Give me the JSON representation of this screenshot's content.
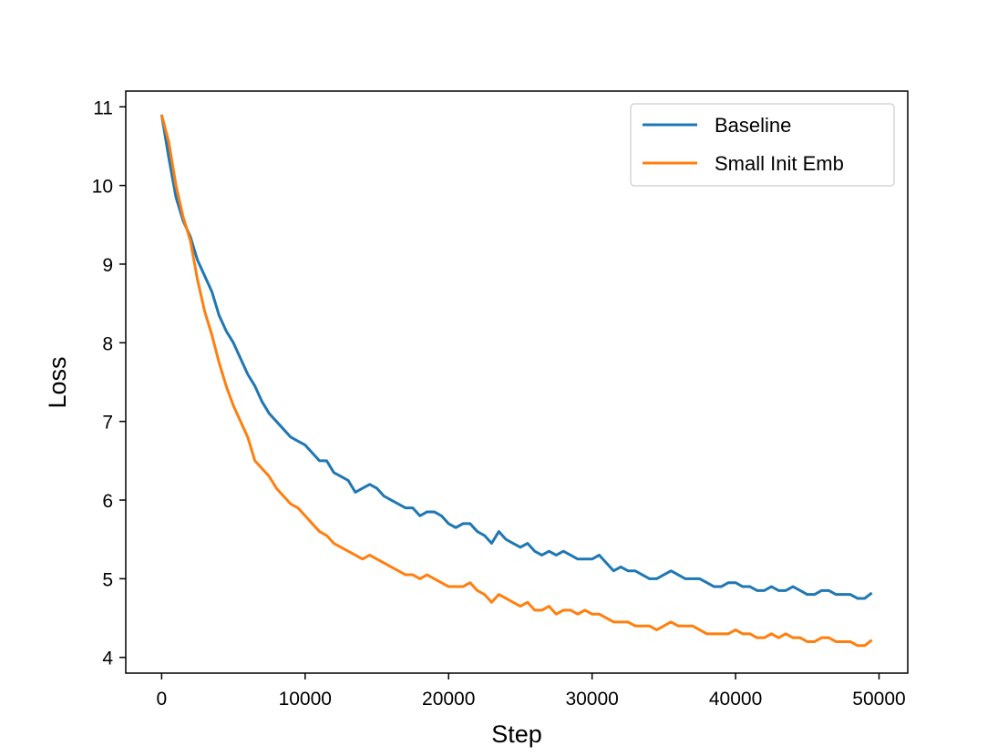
{
  "chart_data": {
    "type": "line",
    "title": "",
    "xlabel": "Step",
    "ylabel": "Loss",
    "xlim": [
      -2500,
      52000
    ],
    "ylim": [
      3.8,
      11.2
    ],
    "x_ticks": [
      0,
      10000,
      20000,
      30000,
      40000,
      50000
    ],
    "y_ticks": [
      4,
      5,
      6,
      7,
      8,
      9,
      10,
      11
    ],
    "grid": false,
    "legend_position": "top-right",
    "x": [
      0,
      500,
      1000,
      1500,
      2000,
      2500,
      3000,
      3500,
      4000,
      4500,
      5000,
      5500,
      6000,
      6500,
      7000,
      7500,
      8000,
      8500,
      9000,
      9500,
      10000,
      10500,
      11000,
      11500,
      12000,
      12500,
      13000,
      13500,
      14000,
      14500,
      15000,
      15500,
      16000,
      16500,
      17000,
      17500,
      18000,
      18500,
      19000,
      19500,
      20000,
      20500,
      21000,
      21500,
      22000,
      22500,
      23000,
      23500,
      24000,
      24500,
      25000,
      25500,
      26000,
      26500,
      27000,
      27500,
      28000,
      28500,
      29000,
      29500,
      30000,
      30500,
      31000,
      31500,
      32000,
      32500,
      33000,
      33500,
      34000,
      34500,
      35000,
      35500,
      36000,
      36500,
      37000,
      37500,
      38000,
      38500,
      39000,
      39500,
      40000,
      40500,
      41000,
      41500,
      42000,
      42500,
      43000,
      43500,
      44000,
      44500,
      45000,
      45500,
      46000,
      46500,
      47000,
      47500,
      48000,
      48500,
      49000,
      49500
    ],
    "series": [
      {
        "name": "Baseline",
        "color": "#1f77b4",
        "values": [
          10.9,
          10.35,
          9.85,
          9.55,
          9.35,
          9.05,
          8.85,
          8.65,
          8.35,
          8.15,
          8.0,
          7.8,
          7.6,
          7.45,
          7.25,
          7.1,
          7.0,
          6.9,
          6.8,
          6.75,
          6.7,
          6.6,
          6.5,
          6.5,
          6.35,
          6.3,
          6.25,
          6.1,
          6.15,
          6.2,
          6.15,
          6.05,
          6.0,
          5.95,
          5.9,
          5.9,
          5.8,
          5.85,
          5.85,
          5.8,
          5.7,
          5.65,
          5.7,
          5.7,
          5.6,
          5.55,
          5.45,
          5.6,
          5.5,
          5.45,
          5.4,
          5.45,
          5.35,
          5.3,
          5.35,
          5.3,
          5.35,
          5.3,
          5.25,
          5.25,
          5.25,
          5.3,
          5.2,
          5.1,
          5.15,
          5.1,
          5.1,
          5.05,
          5.0,
          5.0,
          5.05,
          5.1,
          5.05,
          5.0,
          5.0,
          5.0,
          4.95,
          4.9,
          4.9,
          4.95,
          4.95,
          4.9,
          4.9,
          4.85,
          4.85,
          4.9,
          4.85,
          4.85,
          4.9,
          4.85,
          4.8,
          4.8,
          4.85,
          4.85,
          4.8,
          4.8,
          4.8,
          4.75,
          4.75,
          4.82
        ]
      },
      {
        "name": "Small Init Emb",
        "color": "#ff7f0e",
        "values": [
          10.9,
          10.55,
          10.0,
          9.6,
          9.3,
          8.8,
          8.4,
          8.1,
          7.75,
          7.45,
          7.2,
          7.0,
          6.8,
          6.5,
          6.4,
          6.3,
          6.15,
          6.05,
          5.95,
          5.9,
          5.8,
          5.7,
          5.6,
          5.55,
          5.45,
          5.4,
          5.35,
          5.3,
          5.25,
          5.3,
          5.25,
          5.2,
          5.15,
          5.1,
          5.05,
          5.05,
          5.0,
          5.05,
          5.0,
          4.95,
          4.9,
          4.9,
          4.9,
          4.95,
          4.85,
          4.8,
          4.7,
          4.8,
          4.75,
          4.7,
          4.65,
          4.7,
          4.6,
          4.6,
          4.65,
          4.55,
          4.6,
          4.6,
          4.55,
          4.6,
          4.55,
          4.55,
          4.5,
          4.45,
          4.45,
          4.45,
          4.4,
          4.4,
          4.4,
          4.35,
          4.4,
          4.45,
          4.4,
          4.4,
          4.4,
          4.35,
          4.3,
          4.3,
          4.3,
          4.3,
          4.35,
          4.3,
          4.3,
          4.25,
          4.25,
          4.3,
          4.25,
          4.3,
          4.25,
          4.25,
          4.2,
          4.2,
          4.25,
          4.25,
          4.2,
          4.2,
          4.2,
          4.15,
          4.15,
          4.22
        ]
      }
    ]
  }
}
